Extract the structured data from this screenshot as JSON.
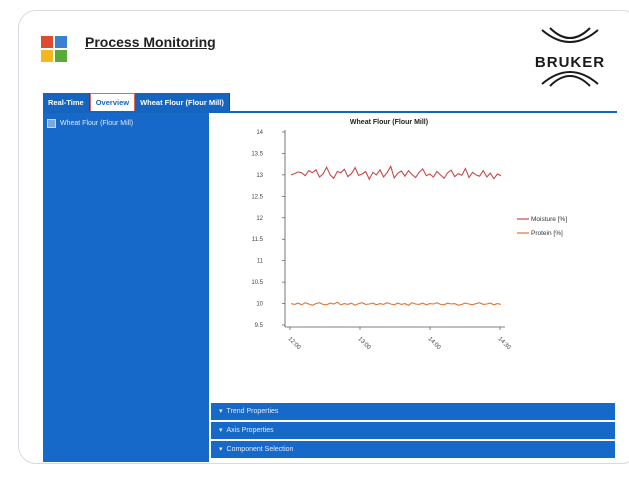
{
  "header": {
    "title": "Process Monitoring",
    "brand": "BRUKER"
  },
  "tabs": [
    {
      "label": "Real-Time"
    },
    {
      "label": "Overview"
    },
    {
      "label": "Wheat Flour (Flour Mill)"
    }
  ],
  "sidebar": {
    "items": [
      {
        "label": "Wheat Flour (Flour Mill)"
      }
    ]
  },
  "panels": [
    {
      "label": "Trend Properties"
    },
    {
      "label": "Axis Properties"
    },
    {
      "label": "Component Selection"
    }
  ],
  "colors": {
    "accent": "#1669c8",
    "moisture": "#c44a4a",
    "protein": "#d9773a"
  },
  "chart_data": {
    "type": "line",
    "title": "Wheat Flour (Flour Mill)",
    "ylim": [
      9.5,
      14
    ],
    "yticks": [
      "14",
      "13.5",
      "13",
      "12.5",
      "12",
      "11.5",
      "11",
      "10.5",
      "10",
      "9.5"
    ],
    "xticks": [
      "12:00",
      "13:00",
      "14:00",
      "14:30"
    ],
    "legend": "right",
    "grid": false,
    "series": [
      {
        "name": "Moisture [%]",
        "values": [
          13.0,
          13.03,
          13.07,
          13.05,
          12.98,
          13.1,
          13.05,
          13.12,
          12.95,
          13.02,
          13.18,
          13.0,
          12.92,
          13.08,
          13.05,
          13.13,
          12.96,
          13.03,
          13.17,
          12.99,
          13.02,
          13.08,
          12.9,
          13.06,
          13.0,
          13.12,
          12.95,
          13.05,
          13.2,
          12.93,
          13.04,
          13.09,
          12.97,
          13.1,
          13.01,
          12.94,
          13.06,
          13.14,
          12.98,
          13.02,
          12.95,
          13.08,
          13.0,
          12.92,
          13.05,
          13.11,
          12.96,
          13.03,
          12.99,
          13.15,
          12.94,
          13.06,
          13.0,
          12.97,
          13.1,
          12.95,
          13.04,
          12.91,
          13.02,
          12.98
        ]
      },
      {
        "name": "Protein [%]",
        "values": [
          10.0,
          9.98,
          10.01,
          9.97,
          10.02,
          9.99,
          9.96,
          10.0,
          10.02,
          9.98,
          9.97,
          10.01,
          9.99,
          10.03,
          9.97,
          10.0,
          9.98,
          10.01,
          9.96,
          10.0,
          10.02,
          9.98,
          9.99,
          10.01,
          9.97,
          10.0,
          9.98,
          10.02,
          9.99,
          9.97,
          10.01,
          9.98,
          10.0,
          9.96,
          10.02,
          9.99,
          9.98,
          10.01,
          9.97,
          10.0,
          9.99,
          10.02,
          9.98,
          9.97,
          10.01,
          9.99,
          10.0,
          9.96,
          9.98,
          10.01,
          9.99,
          9.97,
          10.0,
          10.02,
          9.98,
          9.99,
          10.01,
          9.97,
          10.0,
          9.98
        ]
      }
    ]
  }
}
